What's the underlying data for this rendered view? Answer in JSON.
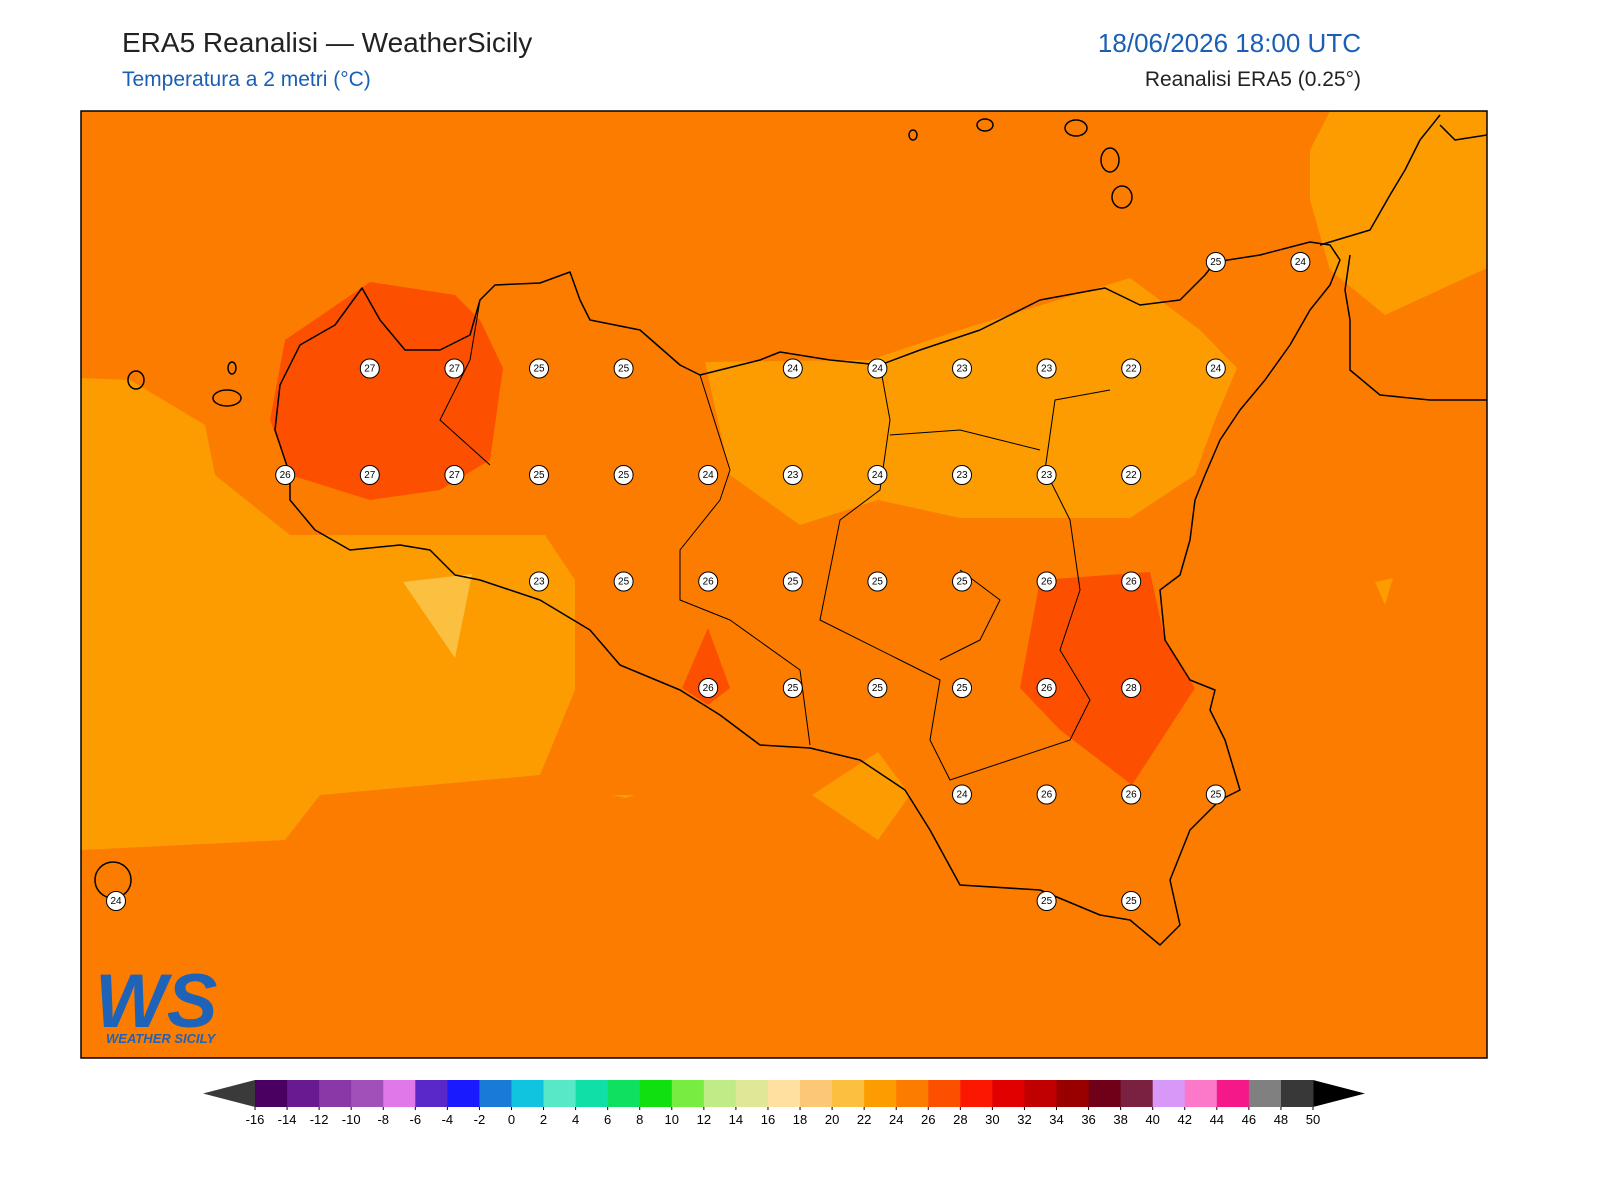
{
  "header": {
    "title": "ERA5 Reanalisi — WeatherSicily",
    "subtitle": "Temperatura a 2 metri (°C)",
    "datetime": "18/06/2026 18:00 UTC",
    "source": "Reanalisi ERA5 (0.25°)"
  },
  "map": {
    "grid_values": [
      [
        null,
        null,
        null,
        null,
        null,
        null,
        null,
        null,
        null,
        null,
        null,
        null,
        null,
        25,
        24
      ],
      [
        null,
        null,
        null,
        27,
        27,
        25,
        25,
        null,
        24,
        24,
        23,
        23,
        22,
        24,
        null
      ],
      [
        null,
        null,
        26,
        27,
        27,
        25,
        25,
        24,
        23,
        24,
        23,
        23,
        22,
        null,
        null
      ],
      [
        null,
        null,
        null,
        null,
        null,
        23,
        25,
        26,
        25,
        25,
        25,
        26,
        26,
        null,
        null
      ],
      [
        null,
        null,
        null,
        null,
        null,
        null,
        null,
        26,
        25,
        25,
        25,
        26,
        28,
        null,
        null
      ],
      [
        null,
        null,
        null,
        null,
        null,
        null,
        null,
        null,
        null,
        null,
        24,
        26,
        26,
        25,
        null
      ],
      [
        24,
        null,
        null,
        null,
        null,
        null,
        null,
        null,
        null,
        null,
        null,
        25,
        25,
        null,
        null
      ]
    ]
  },
  "colorbar": {
    "ticks": [
      -16,
      -14,
      -12,
      -10,
      -8,
      -6,
      -4,
      -2,
      0,
      2,
      4,
      6,
      8,
      10,
      12,
      14,
      16,
      18,
      20,
      22,
      24,
      26,
      28,
      30,
      32,
      34,
      36,
      38,
      40,
      42,
      44,
      46,
      48,
      50
    ],
    "colors": [
      "#4a0060",
      "#6a1a90",
      "#8a38a8",
      "#a050b8",
      "#e078ea",
      "#5a28c8",
      "#1a1aff",
      "#1a7ad8",
      "#10c4e0",
      "#58e8c8",
      "#10e0a8",
      "#10e060",
      "#10e010",
      "#78ec40",
      "#c0ec88",
      "#e0e898",
      "#ffe0a0",
      "#fcc878",
      "#fcc040",
      "#fc9c00",
      "#fc7c00",
      "#fc5000",
      "#fc1800",
      "#e00000",
      "#c00000",
      "#980000",
      "#700018",
      "#7a2040",
      "#d898f8",
      "#fc78c8",
      "#f41888",
      "#808080",
      "#383838"
    ],
    "under_color": "#3a3a3a",
    "over_color": "#000000"
  },
  "logo": {
    "mark": "WS",
    "name": "WEATHER SICILY"
  }
}
